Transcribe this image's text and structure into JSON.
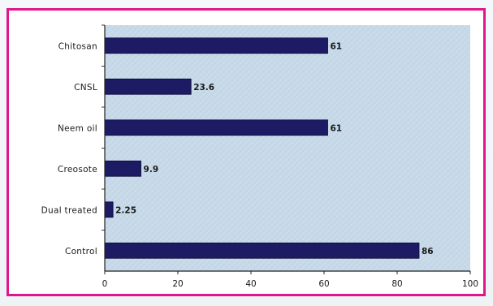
{
  "chart_data": {
    "type": "bar",
    "orientation": "horizontal",
    "categories": [
      "Chitosan",
      "CNSL",
      "Neem oil",
      "Creosote",
      "Dual treated",
      "Control"
    ],
    "values": [
      61,
      23.6,
      61,
      9.9,
      2.25,
      86
    ],
    "value_labels": [
      "61",
      "23.6",
      "61",
      "9.9",
      "2.25",
      "86"
    ],
    "title": "",
    "xlabel": "",
    "ylabel": "",
    "xlim": [
      0,
      100
    ],
    "x_ticks": [
      0,
      20,
      40,
      60,
      80,
      100
    ],
    "x_tick_labels": [
      "0",
      "20",
      "40",
      "60",
      "80",
      "100"
    ],
    "grid": false,
    "legend": "none",
    "bar_color": "#1c1b63",
    "plot_background": "#c4d7e6",
    "frame_color": "#e0168b"
  }
}
